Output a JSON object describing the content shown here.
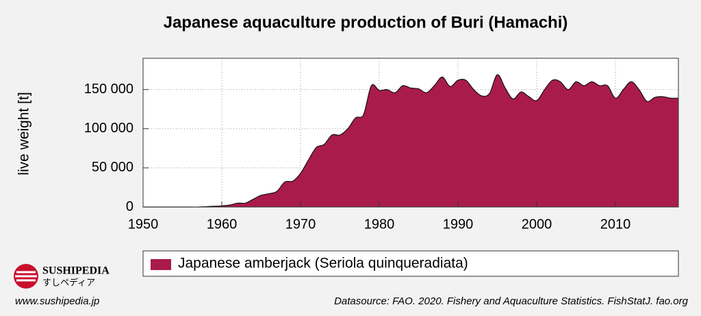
{
  "chart_data": {
    "type": "area",
    "title": "Japanese aquaculture production of Buri (Hamachi)",
    "y_label": "live weight [t]",
    "x": [
      1950,
      1951,
      1952,
      1953,
      1954,
      1955,
      1956,
      1957,
      1958,
      1959,
      1960,
      1961,
      1962,
      1963,
      1964,
      1965,
      1966,
      1967,
      1968,
      1969,
      1970,
      1971,
      1972,
      1973,
      1974,
      1975,
      1976,
      1977,
      1978,
      1979,
      1980,
      1981,
      1982,
      1983,
      1984,
      1985,
      1986,
      1987,
      1988,
      1989,
      1990,
      1991,
      1992,
      1993,
      1994,
      1995,
      1996,
      1997,
      1998,
      1999,
      2000,
      2001,
      2002,
      2003,
      2004,
      2005,
      2006,
      2007,
      2008,
      2009,
      2010,
      2011,
      2012,
      2013,
      2014,
      2015,
      2016,
      2017,
      2018
    ],
    "series": [
      {
        "name": "Japanese amberjack (Seriola quinqueradiata)",
        "color": "#a91b4a",
        "values": [
          0,
          0,
          0,
          0,
          0,
          0,
          0,
          0,
          500,
          1000,
          1500,
          2500,
          5000,
          5000,
          10000,
          15000,
          17000,
          20000,
          32000,
          33000,
          43000,
          60000,
          76000,
          80000,
          92000,
          92000,
          100000,
          114000,
          118000,
          155000,
          149000,
          150000,
          146000,
          155000,
          152000,
          151000,
          146000,
          155000,
          166000,
          154000,
          162000,
          162000,
          150000,
          142000,
          145000,
          169000,
          152000,
          138000,
          147000,
          141000,
          136000,
          150000,
          162000,
          160000,
          150000,
          160000,
          155000,
          160000,
          155000,
          155000,
          139000,
          150000,
          160000,
          150000,
          135000,
          140000,
          141000,
          139000,
          139000
        ]
      }
    ],
    "xlim": [
      1950,
      2018
    ],
    "xticks": [
      1950,
      1960,
      1970,
      1980,
      1990,
      2000,
      2010
    ],
    "ylim": [
      0,
      190000
    ],
    "yticks": [
      0,
      {
        "value": 50000,
        "label": "50 000"
      },
      {
        "value": 100000,
        "label": "100 000"
      },
      {
        "value": 150000,
        "label": "150 000"
      }
    ],
    "grid": true
  },
  "branding": {
    "logo_name": "SUSHIPEDIA",
    "logo_subtitle": "すしペディア",
    "url": "www.sushipedia.jp"
  },
  "source": "Datasource: FAO. 2020. Fishery and Aquaculture Statistics. FishStatJ. fao.org"
}
